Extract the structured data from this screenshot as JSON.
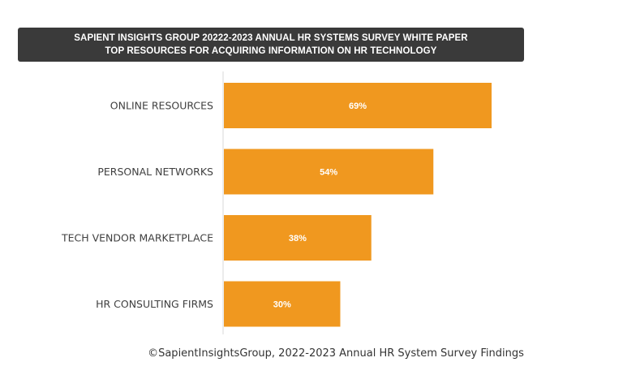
{
  "chart_data": {
    "type": "bar",
    "orientation": "horizontal",
    "title": "SAPIENT INSIGHTS GROUP 20222-2023 ANNUAL HR SYSTEMS SURVEY WHITE PAPER",
    "subtitle": "TOP RESOURCES FOR ACQUIRING INFORMATION ON HR TECHNOLOGY",
    "categories": [
      "ONLINE RESOURCES",
      "PERSONAL NETWORKS",
      "TECH VENDOR MARKETPLACE",
      "HR CONSULTING FIRMS"
    ],
    "values": [
      69,
      54,
      38,
      30
    ],
    "value_labels": [
      "69%",
      "54%",
      "38%",
      "30%"
    ],
    "xlim": [
      0,
      100
    ],
    "unit": "%",
    "grid": false,
    "legend": "none",
    "bar_color": "#F0981F",
    "label_color": "#ffffff"
  },
  "footer": "©SapientInsightsGroup, 2022-2023 Annual HR System Survey Findings"
}
